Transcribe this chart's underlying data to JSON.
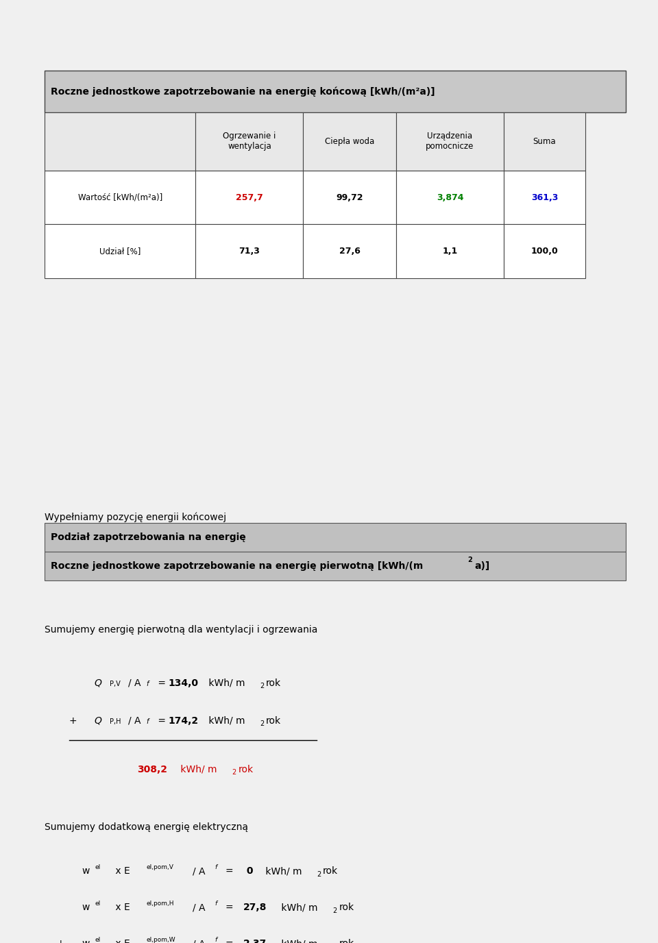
{
  "bg_color": "#ffffff",
  "border_color": "#000000",
  "panel1": {
    "title": "Roczne jednostkowe zapotrzebowanie na energię końcową [kWh/(m²a)]",
    "title_bg": "#c8c8c8",
    "header_bg": "#e8e8e8",
    "col_headers": [
      "Ogrzewanie i\nwentylacja",
      "Ciepła woda",
      "Urządzenia\npomocnicze",
      "Suma"
    ],
    "row_labels": [
      "Wartość [kWh/(m²a)]",
      "Udział [%]"
    ],
    "values": [
      [
        "257,7",
        "99,72",
        "3,874",
        "361,3"
      ],
      [
        "71,3",
        "27,6",
        "1,1",
        "100,0"
      ]
    ],
    "value_colors": [
      [
        "#cc0000",
        "#000000",
        "#008000",
        "#0000cc"
      ],
      [
        "#000000",
        "#000000",
        "#000000",
        "#000000"
      ]
    ]
  },
  "panel2": {
    "intro_text": "Wypełniamy pozycję energii końcowej",
    "header1": "Podział zapotrzebowania na energię",
    "header2_part1": "Roczne jednostkowe zapotrzebowanie na energię pierwotną [kWh/(m",
    "header2_part2": "a)]",
    "header_bg": "#c0c0c0",
    "section1_text": "Sumujemy energię pierwotną dla wentylacji i ogrzewania",
    "section2_text": "Sumujemy dodatkową energię elektryczną"
  }
}
